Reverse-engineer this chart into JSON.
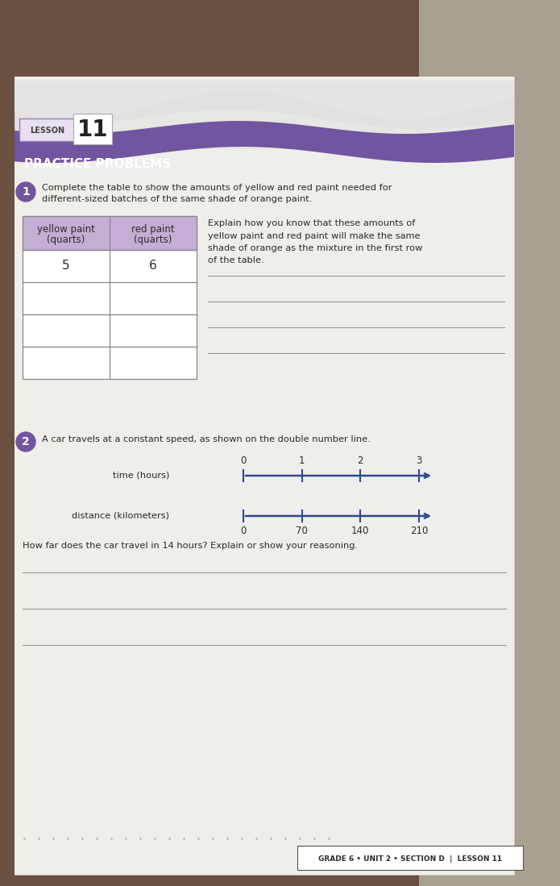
{
  "bg_dark": "#5a4030",
  "bg_right": "#b0a898",
  "paper_bg": "#e8e8e8",
  "paper_white": "#f2f1ef",
  "header_purple": "#7055a0",
  "header_text_color": "#ffffff",
  "lesson_number": "11",
  "section_title": "PRACTICE PROBLEMS",
  "problem1_circle_color": "#7055a0",
  "problem1_text_line1": "Complete the table to show the amounts of yellow and red paint needed for",
  "problem1_text_line2": "different-sized batches of the same shade of orange paint.",
  "explain_text_lines": [
    "Explain how you know that these amounts of",
    "yellow paint and red paint will make the same",
    "shade of orange as the mixture in the first row",
    "of the table."
  ],
  "table_header_bg": "#c4aed4",
  "table_header1a": "yellow paint",
  "table_header1b": "(quarts)",
  "table_header2a": "red paint",
  "table_header2b": "(quarts)",
  "table_data": [
    [
      "5",
      "6"
    ],
    [
      "",
      ""
    ],
    [
      "",
      ""
    ],
    [
      "",
      ""
    ]
  ],
  "num_answer_lines_p1": 4,
  "problem2_circle_color": "#7055a0",
  "problem2_text": "A car travels at a constant speed, as shown on the double number line.",
  "time_label": "time (hours)",
  "time_ticks": [
    0,
    1,
    2,
    3
  ],
  "dist_label": "distance (kilometers)",
  "dist_ticks": [
    0,
    70,
    140,
    210
  ],
  "number_line_color": "#2d4a8a",
  "question2_text": "How far does the car travel in 14 hours? Explain or show your reasoning.",
  "num_answer_lines_p2": 3,
  "footer_text": "GRADE 6 • UNIT 2 • SECTION D  |  LESSON 11",
  "dark_text": "#2a2a2a",
  "line_color": "#999999",
  "table_border": "#888888"
}
